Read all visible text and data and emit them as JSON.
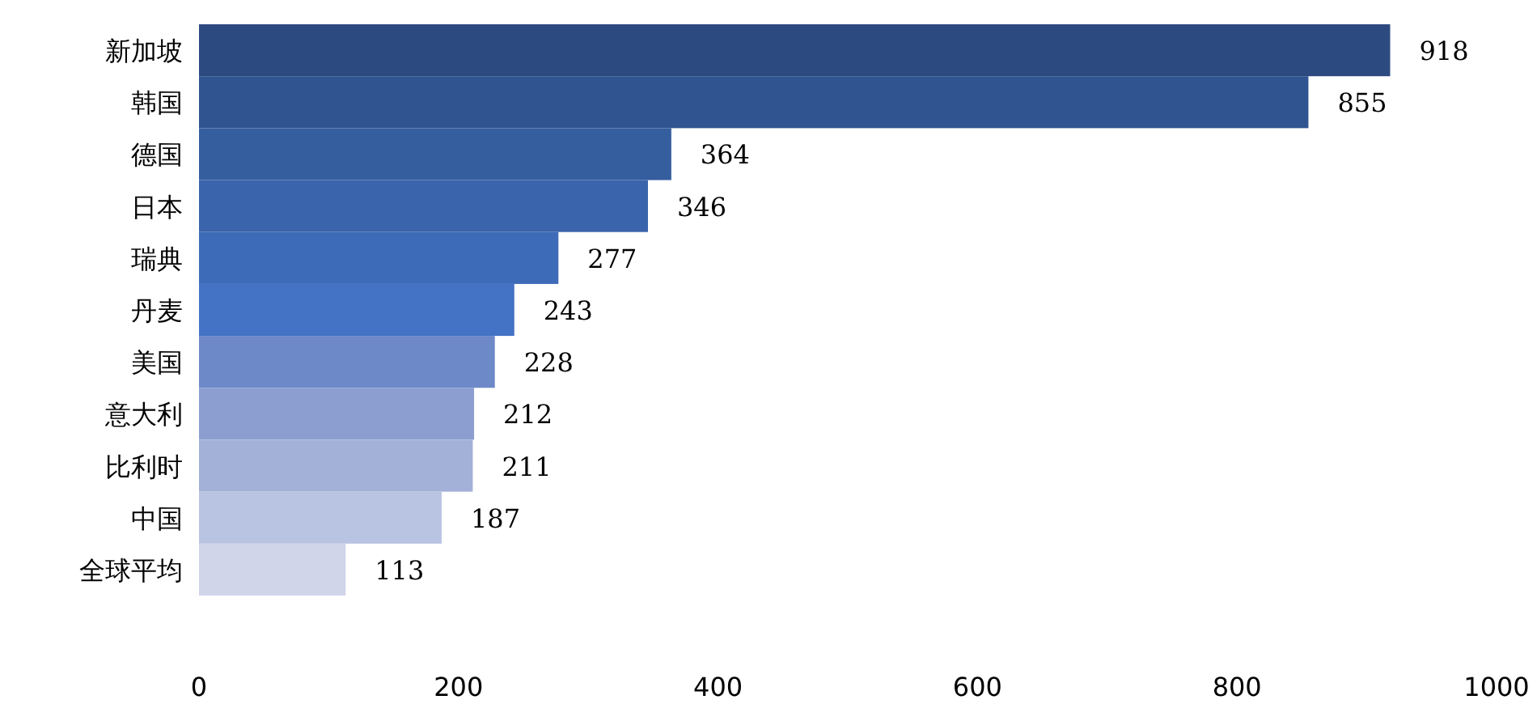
{
  "chart_data": {
    "type": "bar",
    "orientation": "horizontal",
    "categories": [
      "新加坡",
      "韩国",
      "德国",
      "日本",
      "瑞典",
      "丹麦",
      "美国",
      "意大利",
      "比利时",
      "中国",
      "全球平均"
    ],
    "values": [
      918,
      855,
      364,
      346,
      277,
      243,
      228,
      212,
      211,
      187,
      113
    ],
    "colors": [
      "#2d4a80",
      "#30548f",
      "#355e9f",
      "#3a64ab",
      "#3e6bb7",
      "#4472c4",
      "#6e89c8",
      "#8b9ecf",
      "#a3b1d8",
      "#b9c3e2",
      "#d0d5ea"
    ],
    "xlim": [
      0,
      1000
    ],
    "xticks": [
      0,
      200,
      400,
      600,
      800,
      1000
    ],
    "data_labels": true,
    "grid": false
  }
}
